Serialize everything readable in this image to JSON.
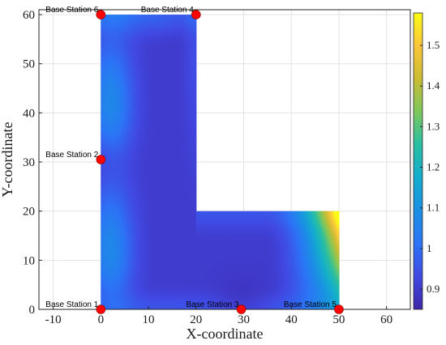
{
  "chart_data": {
    "type": "heatmap",
    "title": "",
    "xlabel": "X-coordinate",
    "ylabel": "Y-coordinate",
    "xlim": [
      -13,
      65
    ],
    "ylim": [
      0,
      61
    ],
    "xticks": [
      -10,
      0,
      10,
      20,
      30,
      40,
      50,
      60
    ],
    "yticks": [
      0,
      10,
      20,
      30,
      40,
      50,
      60
    ],
    "grid": true,
    "region": "L-shaped area: x from 0 to 20 for y from 0 to 60, plus x from 20 to 50 for y from 0 to 20",
    "colorbar": {
      "min": 0.85,
      "max": 1.58,
      "ticks": [
        0.9,
        1,
        1.1,
        1.2,
        1.3,
        1.4,
        1.5
      ],
      "tick_labels": [
        "0.9",
        "1",
        "1.1",
        "1.2",
        "1.3",
        "1.4",
        "1.5"
      ],
      "colormap": "parula"
    },
    "base_stations": [
      {
        "label": "Base Station 1",
        "x": 0,
        "y": 0
      },
      {
        "label": "Base Station 2",
        "x": 0,
        "y": 30.5
      },
      {
        "label": "Base Station 3",
        "x": 29.5,
        "y": 0
      },
      {
        "label": "Base Station 4",
        "x": 20,
        "y": 60
      },
      {
        "label": "Base Station 5",
        "x": 50,
        "y": 0
      },
      {
        "label": "Base Station 6",
        "x": 0,
        "y": 60
      }
    ],
    "station_color": "#ff0000"
  }
}
